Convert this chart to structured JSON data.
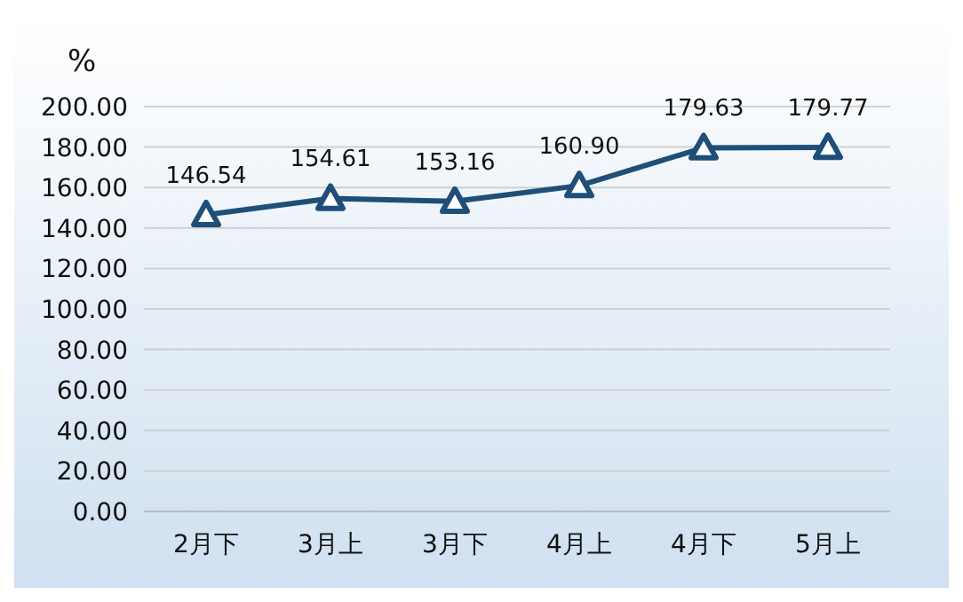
{
  "chart_data": {
    "type": "line",
    "ylabel": "%",
    "categories": [
      "2月下",
      "3月上",
      "3月下",
      "4月上",
      "4月下",
      "5月上"
    ],
    "values": [
      146.54,
      154.61,
      153.16,
      160.9,
      179.63,
      179.77
    ],
    "value_labels": [
      "146.54",
      "154.61",
      "153.16",
      "160.90",
      "179.63",
      "179.77"
    ],
    "color": "#1f4e79",
    "marker": "triangle",
    "grid": "y",
    "ylim": [
      0,
      200
    ],
    "yticks": [
      {
        "value": 0,
        "label": "0.00"
      },
      {
        "value": 20,
        "label": "20.00"
      },
      {
        "value": 40,
        "label": "40.00"
      },
      {
        "value": 60,
        "label": "60.00"
      },
      {
        "value": 80,
        "label": "80.00"
      },
      {
        "value": 100,
        "label": "100.00"
      },
      {
        "value": 120,
        "label": "120.00"
      },
      {
        "value": 140,
        "label": "140.00"
      },
      {
        "value": 160,
        "label": "160.00"
      },
      {
        "value": 180,
        "label": "180.00"
      },
      {
        "value": 200,
        "label": "200.00"
      }
    ]
  }
}
